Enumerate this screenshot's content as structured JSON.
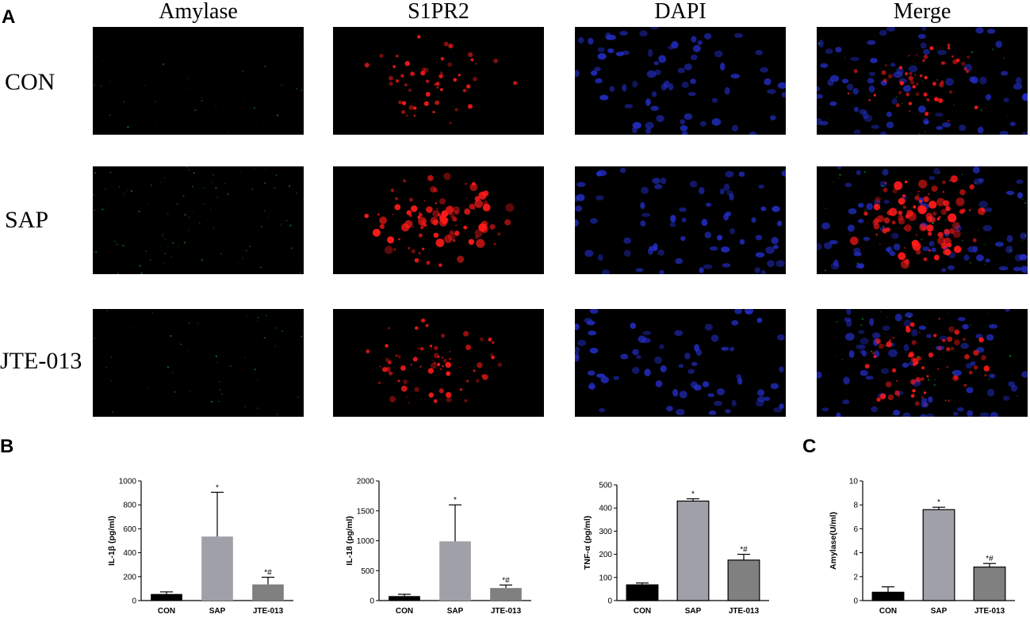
{
  "figure": {
    "panel_labels": {
      "a": "A",
      "b": "B",
      "c": "C"
    },
    "columns": [
      "Amylase",
      "S1PR2",
      "DAPI",
      "Merge"
    ],
    "rows": [
      "CON",
      "SAP",
      "JTE-013"
    ],
    "channel_colors": {
      "Amylase": "#1fbf2a",
      "S1PR2": "#ff1a1a",
      "DAPI": "#2530d0",
      "Merge": "mixed"
    },
    "signal_intensity": {
      "CON": {
        "Amylase": 0.08,
        "S1PR2": 0.35,
        "DAPI": 0.6,
        "Merge": 0.6
      },
      "SAP": {
        "Amylase": 0.3,
        "S1PR2": 0.95,
        "DAPI": 0.6,
        "Merge": 0.9
      },
      "JTE-013": {
        "Amylase": 0.15,
        "S1PR2": 0.55,
        "DAPI": 0.6,
        "Merge": 0.65
      }
    }
  },
  "chart_data": [
    {
      "type": "bar",
      "panel": "B",
      "categories": [
        "CON",
        "SAP",
        "JTE-013"
      ],
      "values": [
        55,
        535,
        135
      ],
      "errors": [
        18,
        370,
        60
      ],
      "annotations": [
        "",
        "*",
        "*#"
      ],
      "ylabel": "IL-1β (pg/ml)",
      "ylim": [
        0,
        1000
      ],
      "yticks": [
        0,
        200,
        400,
        600,
        800,
        1000
      ],
      "bar_colors": [
        "#000000",
        "#a0a0a8",
        "#808080"
      ],
      "bar_outline": false
    },
    {
      "type": "bar",
      "panel": "B",
      "categories": [
        "CON",
        "SAP",
        "JTE-013"
      ],
      "values": [
        75,
        990,
        210
      ],
      "errors": [
        30,
        610,
        50
      ],
      "annotations": [
        "",
        "*",
        "*#"
      ],
      "ylabel": "IL-18 (pg/ml)",
      "ylim": [
        0,
        2000
      ],
      "yticks": [
        0,
        500,
        1000,
        1500,
        2000
      ],
      "bar_colors": [
        "#000000",
        "#a0a0a8",
        "#808080"
      ],
      "bar_outline": false
    },
    {
      "type": "bar",
      "panel": "B",
      "categories": [
        "CON",
        "SAP",
        "JTE-013"
      ],
      "values": [
        68,
        430,
        175
      ],
      "errors": [
        8,
        10,
        25
      ],
      "annotations": [
        "",
        "*",
        "*#"
      ],
      "ylabel": "TNF-α (pg/ml)",
      "ylim": [
        0,
        500
      ],
      "yticks": [
        0,
        100,
        200,
        300,
        400,
        500
      ],
      "bar_colors": [
        "#000000",
        "#a0a0a8",
        "#808080"
      ],
      "bar_outline": true
    },
    {
      "type": "bar",
      "panel": "C",
      "categories": [
        "CON",
        "SAP",
        "JTE-013"
      ],
      "values": [
        0.7,
        7.6,
        2.8
      ],
      "errors": [
        0.45,
        0.2,
        0.3
      ],
      "annotations": [
        "",
        "*",
        "*#"
      ],
      "ylabel": "Amylase(U/ml)",
      "ylim": [
        0,
        10
      ],
      "yticks": [
        0,
        2,
        4,
        6,
        8,
        10
      ],
      "bar_colors": [
        "#000000",
        "#a0a0a8",
        "#808080"
      ],
      "bar_outline": true
    }
  ]
}
